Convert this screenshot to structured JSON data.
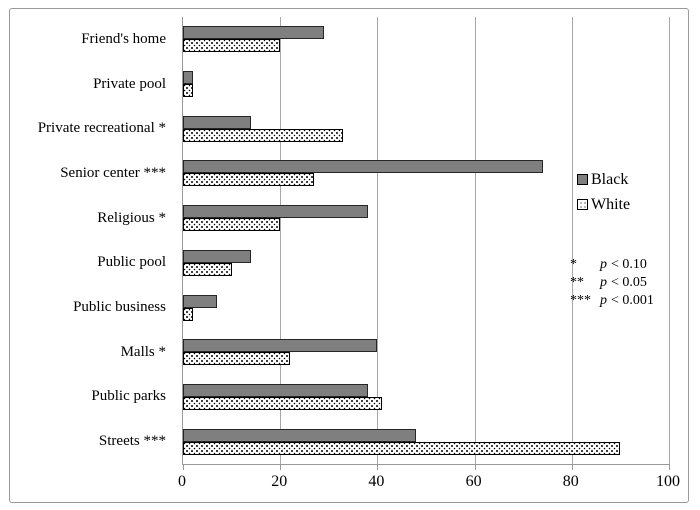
{
  "chart_data": {
    "type": "bar",
    "orientation": "horizontal",
    "title": "",
    "xlabel": "",
    "ylabel": "",
    "categories": [
      "Friend's home",
      "Private pool",
      "Private recreational *",
      "Senior center ***",
      "Religious *",
      "Public pool",
      "Public business",
      "Malls *",
      "Public parks",
      "Streets ***"
    ],
    "series": [
      {
        "name": "Black",
        "key": "black",
        "values": [
          29,
          2,
          14,
          74,
          38,
          14,
          7,
          40,
          38,
          48
        ]
      },
      {
        "name": "White",
        "key": "white",
        "values": [
          20,
          2,
          33,
          27,
          20,
          10,
          2,
          22,
          41,
          90
        ]
      }
    ],
    "xlim": [
      0,
      100
    ],
    "x_ticks": [
      0,
      20,
      40,
      60,
      80,
      100
    ],
    "grid": "vertical gridlines on",
    "legend_position": "inside right"
  },
  "legend": {
    "items": [
      {
        "key": "black",
        "label": "Black"
      },
      {
        "key": "white",
        "label": "White"
      }
    ]
  },
  "annotations": {
    "rows": [
      {
        "stars": "*",
        "p_symbol": "p",
        "threshold": "< 0.10"
      },
      {
        "stars": "**",
        "p_symbol": "p",
        "threshold": "< 0.05"
      },
      {
        "stars": "***",
        "p_symbol": "p",
        "threshold": "< 0.001"
      }
    ]
  },
  "colors": {
    "bar_black_fill": "#7f7f7f",
    "bar_black_border": "#262626",
    "bar_white_fill": "#ffffff",
    "bar_white_pattern_dot": "#000000",
    "gridline": "#a8a8a8",
    "axis_line": "#9a9a9a",
    "figure_border": "#999999",
    "text": "#000000"
  }
}
